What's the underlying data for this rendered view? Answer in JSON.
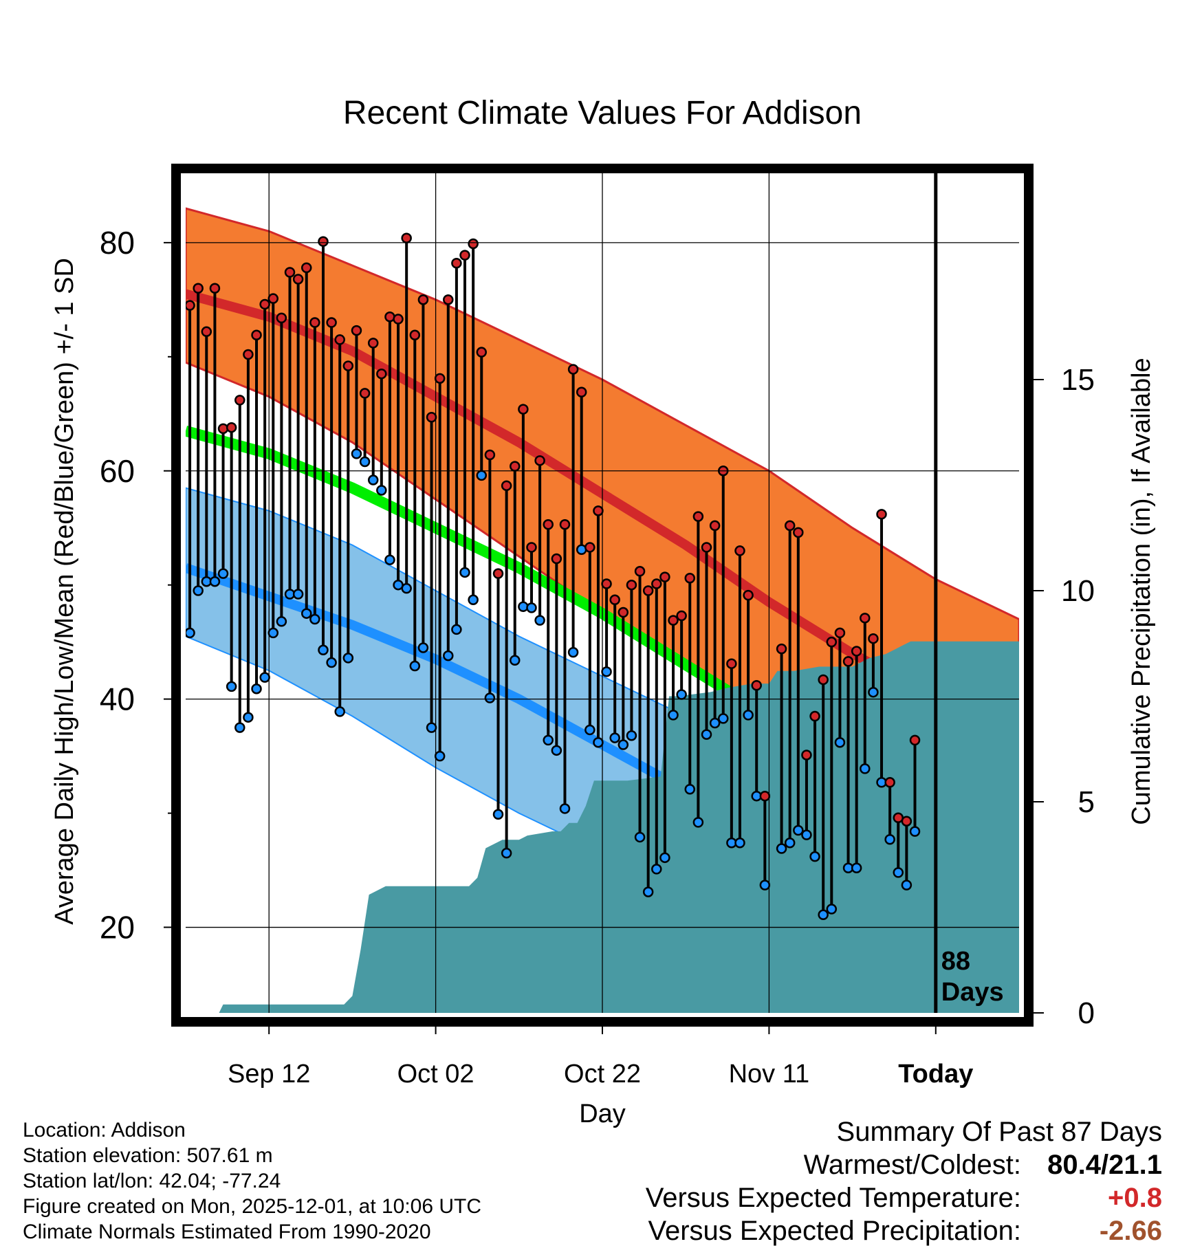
{
  "colors": {
    "high_band": "#f47b30",
    "high_mean": "#d2282a",
    "low_band": "#85c1e9",
    "low_mean": "#1e90ff",
    "avg_mean": "#00ee00",
    "precip_fill": "#499aa3",
    "warm_value": "#d2282a",
    "precip_value": "#a0522d"
  },
  "chart_data": {
    "type": "line",
    "title": "Recent Climate Values For Addison",
    "xlabel": "Day",
    "ylabel": "Average Daily High/Low/Mean (Red/Blue/Green) +/- 1 SD",
    "y2label": "Cumulative Precipitation (in), If Available",
    "xlim": [
      0,
      100
    ],
    "ylim": [
      12.5,
      86.5
    ],
    "y2lim": [
      0,
      20
    ],
    "x_ticks": [
      {
        "day": 10,
        "label": "Sep 12"
      },
      {
        "day": 30,
        "label": "Oct 02"
      },
      {
        "day": 50,
        "label": "Oct 22"
      },
      {
        "day": 70,
        "label": "Nov 11"
      },
      {
        "day": 90,
        "label": "Today"
      }
    ],
    "y_ticks": [
      20,
      40,
      60,
      80
    ],
    "y_minor_ticks": [
      30,
      50,
      70
    ],
    "y2_ticks": [
      0,
      5,
      10,
      15
    ],
    "today_day": 90,
    "today_annotation": [
      "88",
      "Days"
    ],
    "normals": {
      "x": [
        0,
        10,
        20,
        30,
        40,
        50,
        60,
        70,
        80,
        90,
        100
      ],
      "high_plus_sd": [
        83,
        81,
        78,
        75,
        71.5,
        68,
        64,
        60,
        55,
        50.5,
        47
      ],
      "high_mean": [
        75.5,
        73.5,
        70.5,
        66.5,
        62.5,
        58,
        53.5,
        48.5,
        44,
        40,
        37
      ],
      "high_minus_sd": [
        69.5,
        66.5,
        62.5,
        57.5,
        52.5,
        47.5,
        43,
        38.5,
        34,
        30,
        27
      ],
      "avg_mean": [
        63.5,
        61.5,
        58.5,
        55,
        51.5,
        47.5,
        43,
        38.5,
        34.5,
        31.5,
        29
      ],
      "low_plus_sd": [
        58.5,
        56.5,
        53.5,
        49.5,
        45.5,
        42,
        38.5,
        36.5,
        34.5,
        32.5,
        31
      ],
      "low_mean": [
        51.5,
        49,
        46.5,
        43.5,
        40,
        36,
        32,
        28,
        25,
        22.5,
        20.5
      ],
      "low_minus_sd": [
        45.5,
        42.5,
        38.5,
        34,
        30,
        26.5,
        22,
        18,
        15,
        13,
        12.5
      ]
    },
    "series": [
      {
        "name": "Daily High",
        "x": [
          0,
          1,
          2,
          3,
          4,
          5,
          6,
          7,
          8,
          9,
          10,
          11,
          12,
          13,
          14,
          15,
          16,
          17,
          18,
          19,
          20,
          21,
          22,
          23,
          24,
          25,
          26,
          27,
          28,
          29,
          30,
          31,
          32,
          33,
          34,
          35,
          36,
          37,
          38,
          39,
          40,
          41,
          42,
          43,
          44,
          45,
          46,
          47,
          48,
          49,
          50,
          51,
          52,
          53,
          54,
          55,
          56,
          57,
          58,
          59,
          60,
          61,
          62,
          63,
          64,
          65,
          66,
          67,
          68,
          69,
          70,
          71,
          72,
          73,
          74,
          75,
          76,
          77,
          78,
          79,
          80,
          81,
          82,
          83,
          84,
          85,
          86,
          87,
          88,
          89
        ],
        "values": [
          74.5,
          76,
          72.2,
          76,
          63.7,
          63.8,
          66.2,
          70.2,
          71.9,
          74.6,
          75.1,
          73.4,
          77.4,
          76.8,
          77.8,
          73,
          80.1,
          73,
          71.5,
          69.2,
          72.3,
          66.8,
          71.2,
          68.5,
          73.5,
          73.3,
          80.4,
          71.9,
          75,
          64.7,
          68.1,
          75,
          78.2,
          78.9,
          79.9,
          70.4,
          61.4,
          51,
          58.7,
          60.4,
          65.4,
          53.3,
          60.9,
          55.3,
          52.3,
          55.3,
          68.9,
          66.9,
          53.3,
          56.5,
          50.1,
          48.7,
          47.6,
          50,
          51.2,
          49.5,
          50.1,
          50.7,
          46.9,
          47.3,
          50.6,
          56,
          53.3,
          55.2,
          60,
          43.1,
          53,
          49.1,
          41.2,
          31.5,
          null,
          44.4,
          55.2,
          54.6,
          35.1,
          38.5,
          41.7,
          45,
          45.8,
          43.3,
          44.2,
          47.1,
          45.3,
          56.2,
          32.7,
          29.6,
          29.3,
          36.4,
          null,
          null
        ]
      },
      {
        "name": "Daily Low",
        "x": [
          0,
          1,
          2,
          3,
          4,
          5,
          6,
          7,
          8,
          9,
          10,
          11,
          12,
          13,
          14,
          15,
          16,
          17,
          18,
          19,
          20,
          21,
          22,
          23,
          24,
          25,
          26,
          27,
          28,
          29,
          30,
          31,
          32,
          33,
          34,
          35,
          36,
          37,
          38,
          39,
          40,
          41,
          42,
          43,
          44,
          45,
          46,
          47,
          48,
          49,
          50,
          51,
          52,
          53,
          54,
          55,
          56,
          57,
          58,
          59,
          60,
          61,
          62,
          63,
          64,
          65,
          66,
          67,
          68,
          69,
          70,
          71,
          72,
          73,
          74,
          75,
          76,
          77,
          78,
          79,
          80,
          81,
          82,
          83,
          84,
          85,
          86,
          87,
          88,
          89
        ],
        "values": [
          45.8,
          49.5,
          50.3,
          50.3,
          51,
          41.1,
          37.5,
          38.4,
          40.9,
          41.9,
          45.8,
          46.8,
          49.2,
          49.2,
          47.5,
          47,
          44.3,
          43.2,
          38.9,
          43.6,
          61.5,
          60.8,
          59.2,
          58.3,
          52.2,
          50,
          49.7,
          42.9,
          44.5,
          37.5,
          35,
          43.8,
          46.1,
          51.1,
          48.7,
          59.6,
          40.1,
          29.9,
          26.5,
          43.4,
          48.1,
          48,
          46.9,
          36.4,
          35.5,
          30.4,
          44.1,
          53.1,
          37.3,
          36.2,
          42.4,
          36.6,
          36,
          36.8,
          27.9,
          23.1,
          25.1,
          26.1,
          38.6,
          40.4,
          32.1,
          29.2,
          36.9,
          37.9,
          38.3,
          27.4,
          27.4,
          38.6,
          31.5,
          23.7,
          null,
          26.9,
          27.4,
          28.5,
          28.1,
          26.2,
          21.1,
          21.6,
          36.2,
          25.2,
          25.2,
          33.9,
          40.6,
          32.7,
          27.7,
          24.8,
          23.7,
          28.4,
          null,
          null
        ]
      },
      {
        "name": "Cumulative Precipitation",
        "x": [
          0,
          4,
          4.5,
          19,
          20,
          21,
          22,
          24,
          32,
          33,
          34,
          35,
          36,
          38,
          40,
          41,
          44,
          45,
          46,
          47,
          48,
          49,
          53,
          57,
          58,
          59,
          63,
          65,
          68,
          69,
          70,
          71,
          72,
          73,
          76,
          78,
          80,
          81,
          82,
          84,
          85,
          86,
          87,
          100
        ],
        "values": [
          0,
          0,
          0.2,
          0.2,
          0.4,
          1.5,
          2.8,
          3,
          3,
          3,
          3,
          3.2,
          3.9,
          4.1,
          4.1,
          4.2,
          4.3,
          4.3,
          4.5,
          4.5,
          4.9,
          5.5,
          5.5,
          5.6,
          7.5,
          7.5,
          7.6,
          7.7,
          7.8,
          7.8,
          7.8,
          8.1,
          8.1,
          8.1,
          8.2,
          8.2,
          8.2,
          8.3,
          8.4,
          8.5,
          8.6,
          8.7,
          8.8,
          8.8
        ]
      }
    ],
    "grid": true
  },
  "info": {
    "location": "Location: Addison",
    "elevation": "Station elevation: 507.61 m",
    "latlon": "Station lat/lon: 42.04; -77.24",
    "created": "Figure created on Mon, 2025-12-01, at 10:06 UTC",
    "normals": "Climate Normals Estimated From 1990-2020"
  },
  "summary": {
    "title": "Summary Of Past 87 Days",
    "warmest_label": "Warmest/Coldest:",
    "warmest_value": "80.4/21.1",
    "temp_label": "Versus Expected Temperature:",
    "temp_value": "+0.8",
    "precip_label": "Versus Expected Precipitation:",
    "precip_value": "-2.66"
  }
}
